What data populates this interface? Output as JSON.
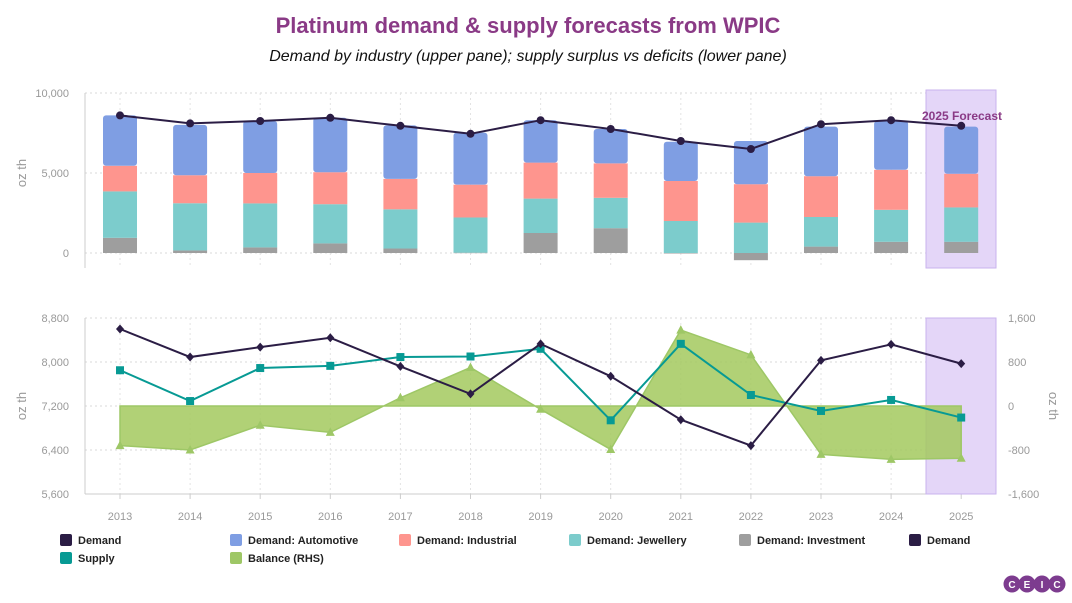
{
  "title": "Platinum demand & supply forecasts from WPIC",
  "subtitle": "Demand by industry (upper pane); supply surplus vs deficits (lower pane)",
  "forecast_label": "2025 Forecast",
  "logo_letters": [
    "C",
    "E",
    "I",
    "C"
  ],
  "colors": {
    "title": "#8a3a86",
    "demand": "#2b1d45",
    "automotive": "#7f9ee3",
    "industrial": "#fe958e",
    "jewellery": "#7ccccc",
    "investment": "#9e9e9e",
    "supply": "#079a94",
    "balance": "#9ec766",
    "balance_fill": "#a3c95e",
    "forecast": "#e4d6f8",
    "forecast_border": "#c9b3ee",
    "logo": "#7d3c8f",
    "axis_text": "#999999"
  },
  "chart_data": [
    {
      "type": "bar",
      "pane": "upper",
      "stacked": true,
      "categories": [
        "2013",
        "2014",
        "2015",
        "2016",
        "2017",
        "2018",
        "2019",
        "2020",
        "2021",
        "2022",
        "2023",
        "2024",
        "2025"
      ],
      "ylabel": "oz th",
      "ylim": [
        -400,
        10000
      ],
      "yticks": [
        0,
        5000,
        10000
      ],
      "ytick_labels": [
        "0",
        "5,000",
        "10,000"
      ],
      "series": [
        {
          "name": "Demand: Investment",
          "values": [
            950,
            160,
            350,
            600,
            280,
            20,
            1250,
            1550,
            0,
            -450,
            400,
            700,
            700
          ]
        },
        {
          "name": "Demand: Jewellery",
          "values": [
            2900,
            2950,
            2750,
            2450,
            2450,
            2200,
            2150,
            1900,
            2000,
            1900,
            1850,
            2000,
            2150
          ]
        },
        {
          "name": "Demand: Industrial",
          "values": [
            1600,
            1750,
            1900,
            2000,
            1900,
            2050,
            2250,
            2150,
            2500,
            2400,
            2550,
            2500,
            2100
          ]
        },
        {
          "name": "Demand: Automotive",
          "values": [
            3150,
            3150,
            3250,
            3400,
            3350,
            3250,
            2650,
            2150,
            2450,
            2700,
            3100,
            3050,
            2950
          ]
        },
        {
          "name": "Demand",
          "type": "line",
          "values": [
            8600,
            8100,
            8250,
            8450,
            7950,
            7450,
            8300,
            7750,
            7000,
            6500,
            8050,
            8300,
            7950
          ]
        }
      ]
    },
    {
      "type": "line",
      "pane": "lower",
      "categories": [
        "2013",
        "2014",
        "2015",
        "2016",
        "2017",
        "2018",
        "2019",
        "2020",
        "2021",
        "2022",
        "2023",
        "2024",
        "2025"
      ],
      "ylabel": "oz th",
      "ylim": [
        5600,
        8800
      ],
      "yticks": [
        5600,
        6400,
        7200,
        8000,
        8800
      ],
      "ytick_labels": [
        "5,600",
        "6,400",
        "7,200",
        "8,000",
        "8,800"
      ],
      "y2label": "oz th",
      "y2lim": [
        -1600,
        1600
      ],
      "y2ticks": [
        -1600,
        -800,
        0,
        800,
        1600
      ],
      "y2tick_labels": [
        "-1,600",
        "-800",
        "0",
        "800",
        "1,600"
      ],
      "series": [
        {
          "name": "Demand",
          "axis": "left",
          "values": [
            8600,
            8090,
            8270,
            8440,
            7920,
            7420,
            8330,
            7740,
            6950,
            6480,
            8030,
            8320,
            7970
          ]
        },
        {
          "name": "Supply",
          "axis": "left",
          "values": [
            7850,
            7290,
            7890,
            7930,
            8090,
            8100,
            8240,
            6940,
            8330,
            7400,
            7110,
            7310,
            6990
          ]
        },
        {
          "name": "Balance (RHS)",
          "axis": "right",
          "type": "area",
          "values": [
            -720,
            -800,
            -350,
            -480,
            150,
            700,
            -60,
            -790,
            1380,
            930,
            -880,
            -970,
            -950
          ]
        }
      ]
    }
  ],
  "legend": [
    {
      "label": "Demand",
      "color_key": "demand"
    },
    {
      "label": "Demand: Automotive",
      "color_key": "automotive"
    },
    {
      "label": "Demand: Industrial",
      "color_key": "industrial"
    },
    {
      "label": "Demand: Jewellery",
      "color_key": "jewellery"
    },
    {
      "label": "Demand: Investment",
      "color_key": "investment"
    },
    {
      "label": "Demand",
      "color_key": "demand"
    },
    {
      "label": "Supply",
      "color_key": "supply"
    },
    {
      "label": "Balance (RHS)",
      "color_key": "balance"
    }
  ]
}
